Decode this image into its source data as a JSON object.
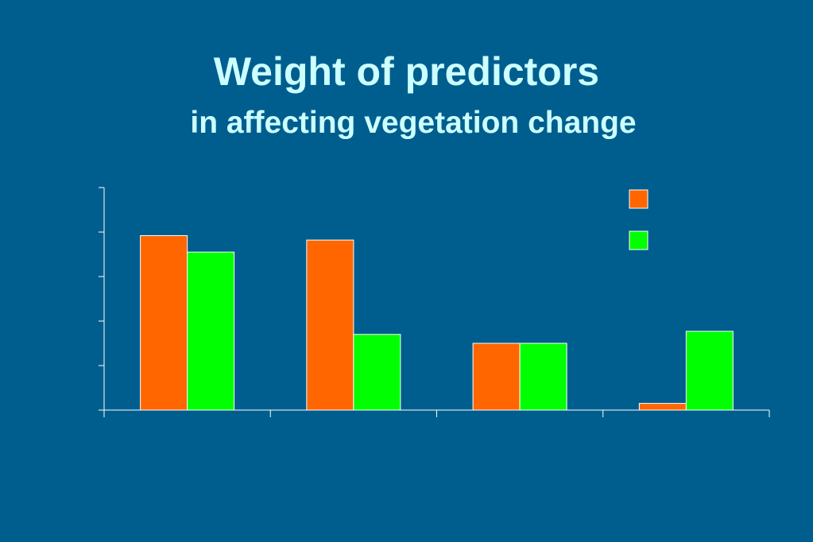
{
  "slide": {
    "title": "Weight of predictors",
    "subtitle": "in affecting vegetation change"
  },
  "colors": {
    "background": "#005E8F",
    "title": "#CCFFFF",
    "axis": "#FFFFFF",
    "bar_border": "#FFFFFF"
  },
  "chart_data": {
    "type": "bar",
    "title": "",
    "xlabel": "",
    "ylabel": "",
    "categories": [
      "",
      "",
      "",
      ""
    ],
    "ylim": [
      0,
      5
    ],
    "grid": false,
    "legend": "top-right",
    "series": [
      {
        "color": "#FF6600",
        "values": [
          3.92,
          3.82,
          1.5,
          0.15
        ]
      },
      {
        "color": "#00FF00",
        "values": [
          3.55,
          1.7,
          1.5,
          1.77
        ]
      }
    ]
  }
}
